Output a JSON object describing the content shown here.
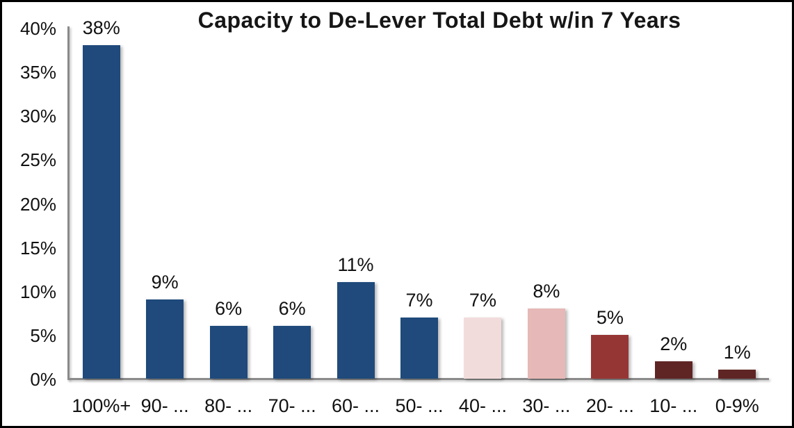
{
  "chart_data": {
    "type": "bar",
    "title": "Capacity to De-Lever Total Debt w/in 7 Years",
    "categories": [
      "100%+",
      "90- ...",
      "80- ...",
      "70- ...",
      "60- ...",
      "50- ...",
      "40- ...",
      "30- ...",
      "20- ...",
      "10- ...",
      "0-9%"
    ],
    "values": [
      38,
      9,
      6,
      6,
      11,
      7,
      7,
      8,
      5,
      2,
      1
    ],
    "value_labels": [
      "38%",
      "9%",
      "6%",
      "6%",
      "11%",
      "7%",
      "7%",
      "8%",
      "5%",
      "2%",
      "1%"
    ],
    "bar_colors": [
      "#1F4A7B",
      "#1F4A7B",
      "#1F4A7B",
      "#1F4A7B",
      "#1F4A7B",
      "#1F4A7B",
      "#F2DCDB",
      "#E6B8B7",
      "#963634",
      "#5E2524",
      "#5E2524"
    ],
    "y_ticks": [
      "0%",
      "5%",
      "10%",
      "15%",
      "20%",
      "25%",
      "30%",
      "35%",
      "40%"
    ],
    "y_tick_values": [
      0,
      5,
      10,
      15,
      20,
      25,
      30,
      35,
      40
    ],
    "ylim": [
      0,
      40
    ],
    "xlabel": "",
    "ylabel": "",
    "grid": false,
    "legend": false,
    "colors": {
      "navy": "#1F4A7B",
      "light_pink": "#F2DCDB",
      "mid_pink": "#E6B8B7",
      "brick_red": "#963634",
      "dark_maroon": "#5E2524",
      "axis_gray": "#8A8A8A",
      "text": "#111111",
      "frame_border": "#000000",
      "background": "#FFFFFF"
    }
  }
}
